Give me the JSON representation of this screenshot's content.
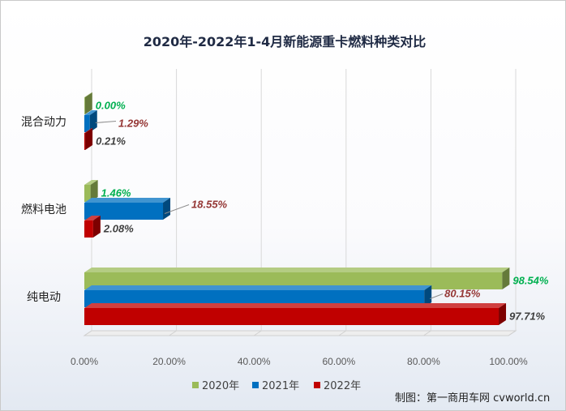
{
  "chart_data": {
    "type": "bar",
    "orientation": "horizontal",
    "style": "3d-clustered",
    "title": "2020年-2022年1-4月新能源重卡燃料种类对比",
    "categories": [
      "混合动力",
      "燃料电池",
      "纯电动"
    ],
    "series": [
      {
        "name": "2020年",
        "color": "#9bbb59",
        "values": [
          0.0,
          1.46,
          98.54
        ],
        "labels": [
          "0.00%",
          "1.46%",
          "98.54%"
        ],
        "label_color": "#00b050"
      },
      {
        "name": "2021年",
        "color": "#0070c0",
        "values": [
          1.29,
          18.55,
          80.15
        ],
        "labels": [
          "1.29%",
          "18.55%",
          "80.15%"
        ],
        "label_color": "#953735"
      },
      {
        "name": "2022年",
        "color": "#c00000",
        "values": [
          0.21,
          2.08,
          97.71
        ],
        "labels": [
          "0.21%",
          "2.08%",
          "97.71%"
        ],
        "label_color": "#404040"
      }
    ],
    "xlim": [
      0,
      100
    ],
    "x_ticks": [
      "0.00%",
      "20.00%",
      "40.00%",
      "60.00%",
      "80.00%",
      "100.00%"
    ],
    "grid": true,
    "legend_position": "bottom"
  },
  "credit": "制图：第一商用车网 cvworld.cn"
}
